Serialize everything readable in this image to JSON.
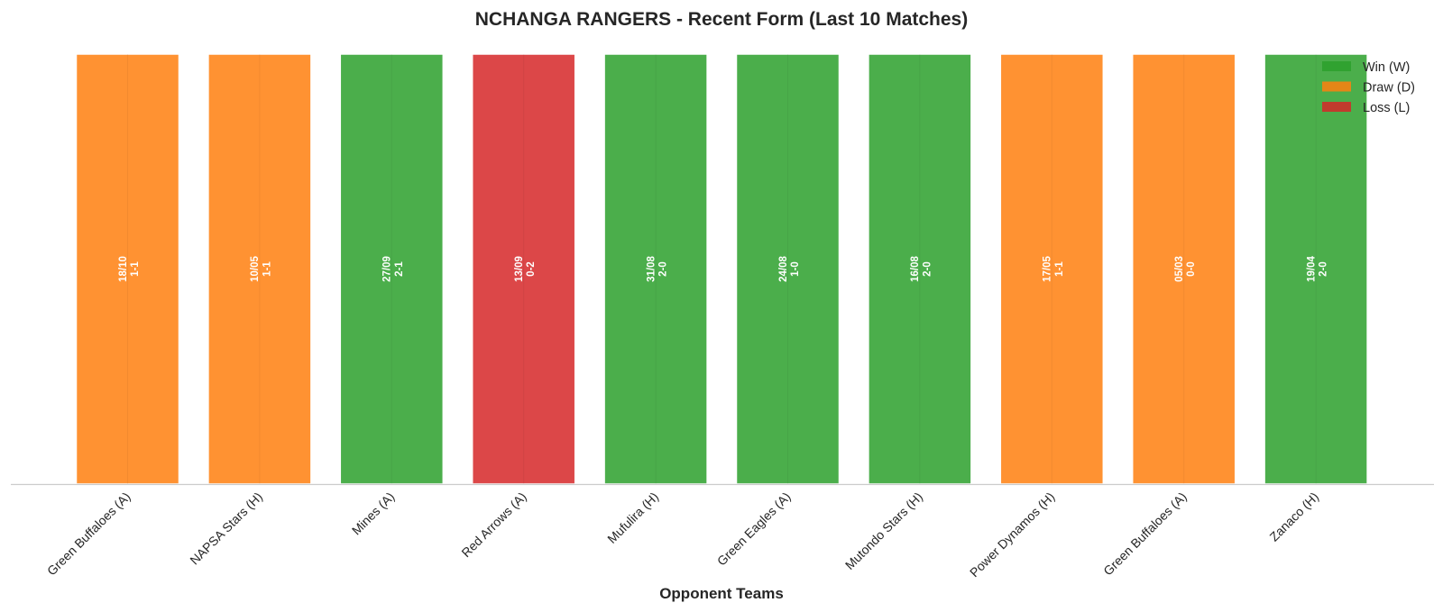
{
  "chart_data": {
    "type": "bar",
    "title": "NCHANGA RANGERS - Recent Form (Last 10 Matches)",
    "xlabel": "Opponent Teams",
    "ylabel": "",
    "grid": false,
    "legend_position": "top-right",
    "colors": {
      "W": "#2ca02c",
      "D": "#ff7f0e",
      "L": "#d62728"
    },
    "legend": [
      {
        "key": "W",
        "label": "Win (W)"
      },
      {
        "key": "D",
        "label": "Draw (D)"
      },
      {
        "key": "L",
        "label": "Loss (L)"
      }
    ],
    "categories": [
      "Green Buffaloes (A)",
      "NAPSA Stars (H)",
      "Mines (A)",
      "Red Arrows (A)",
      "Mufulira (H)",
      "Green Eagles (A)",
      "Mutondo Stars (H)",
      "Power Dynamos (H)",
      "Green Buffaloes (A)",
      "Zanaco (H)"
    ],
    "values": [
      1,
      1,
      1,
      1,
      1,
      1,
      1,
      1,
      1,
      1
    ],
    "results": [
      "D",
      "D",
      "W",
      "L",
      "W",
      "W",
      "W",
      "D",
      "D",
      "W"
    ],
    "dates": [
      "18/10",
      "10/05",
      "27/09",
      "13/09",
      "31/08",
      "24/08",
      "16/08",
      "17/05",
      "05/03",
      "19/04"
    ],
    "scores": [
      "1-1",
      "1-1",
      "2-1",
      "0-2",
      "2-0",
      "1-0",
      "2-0",
      "1-1",
      "0-0",
      "2-0"
    ]
  }
}
